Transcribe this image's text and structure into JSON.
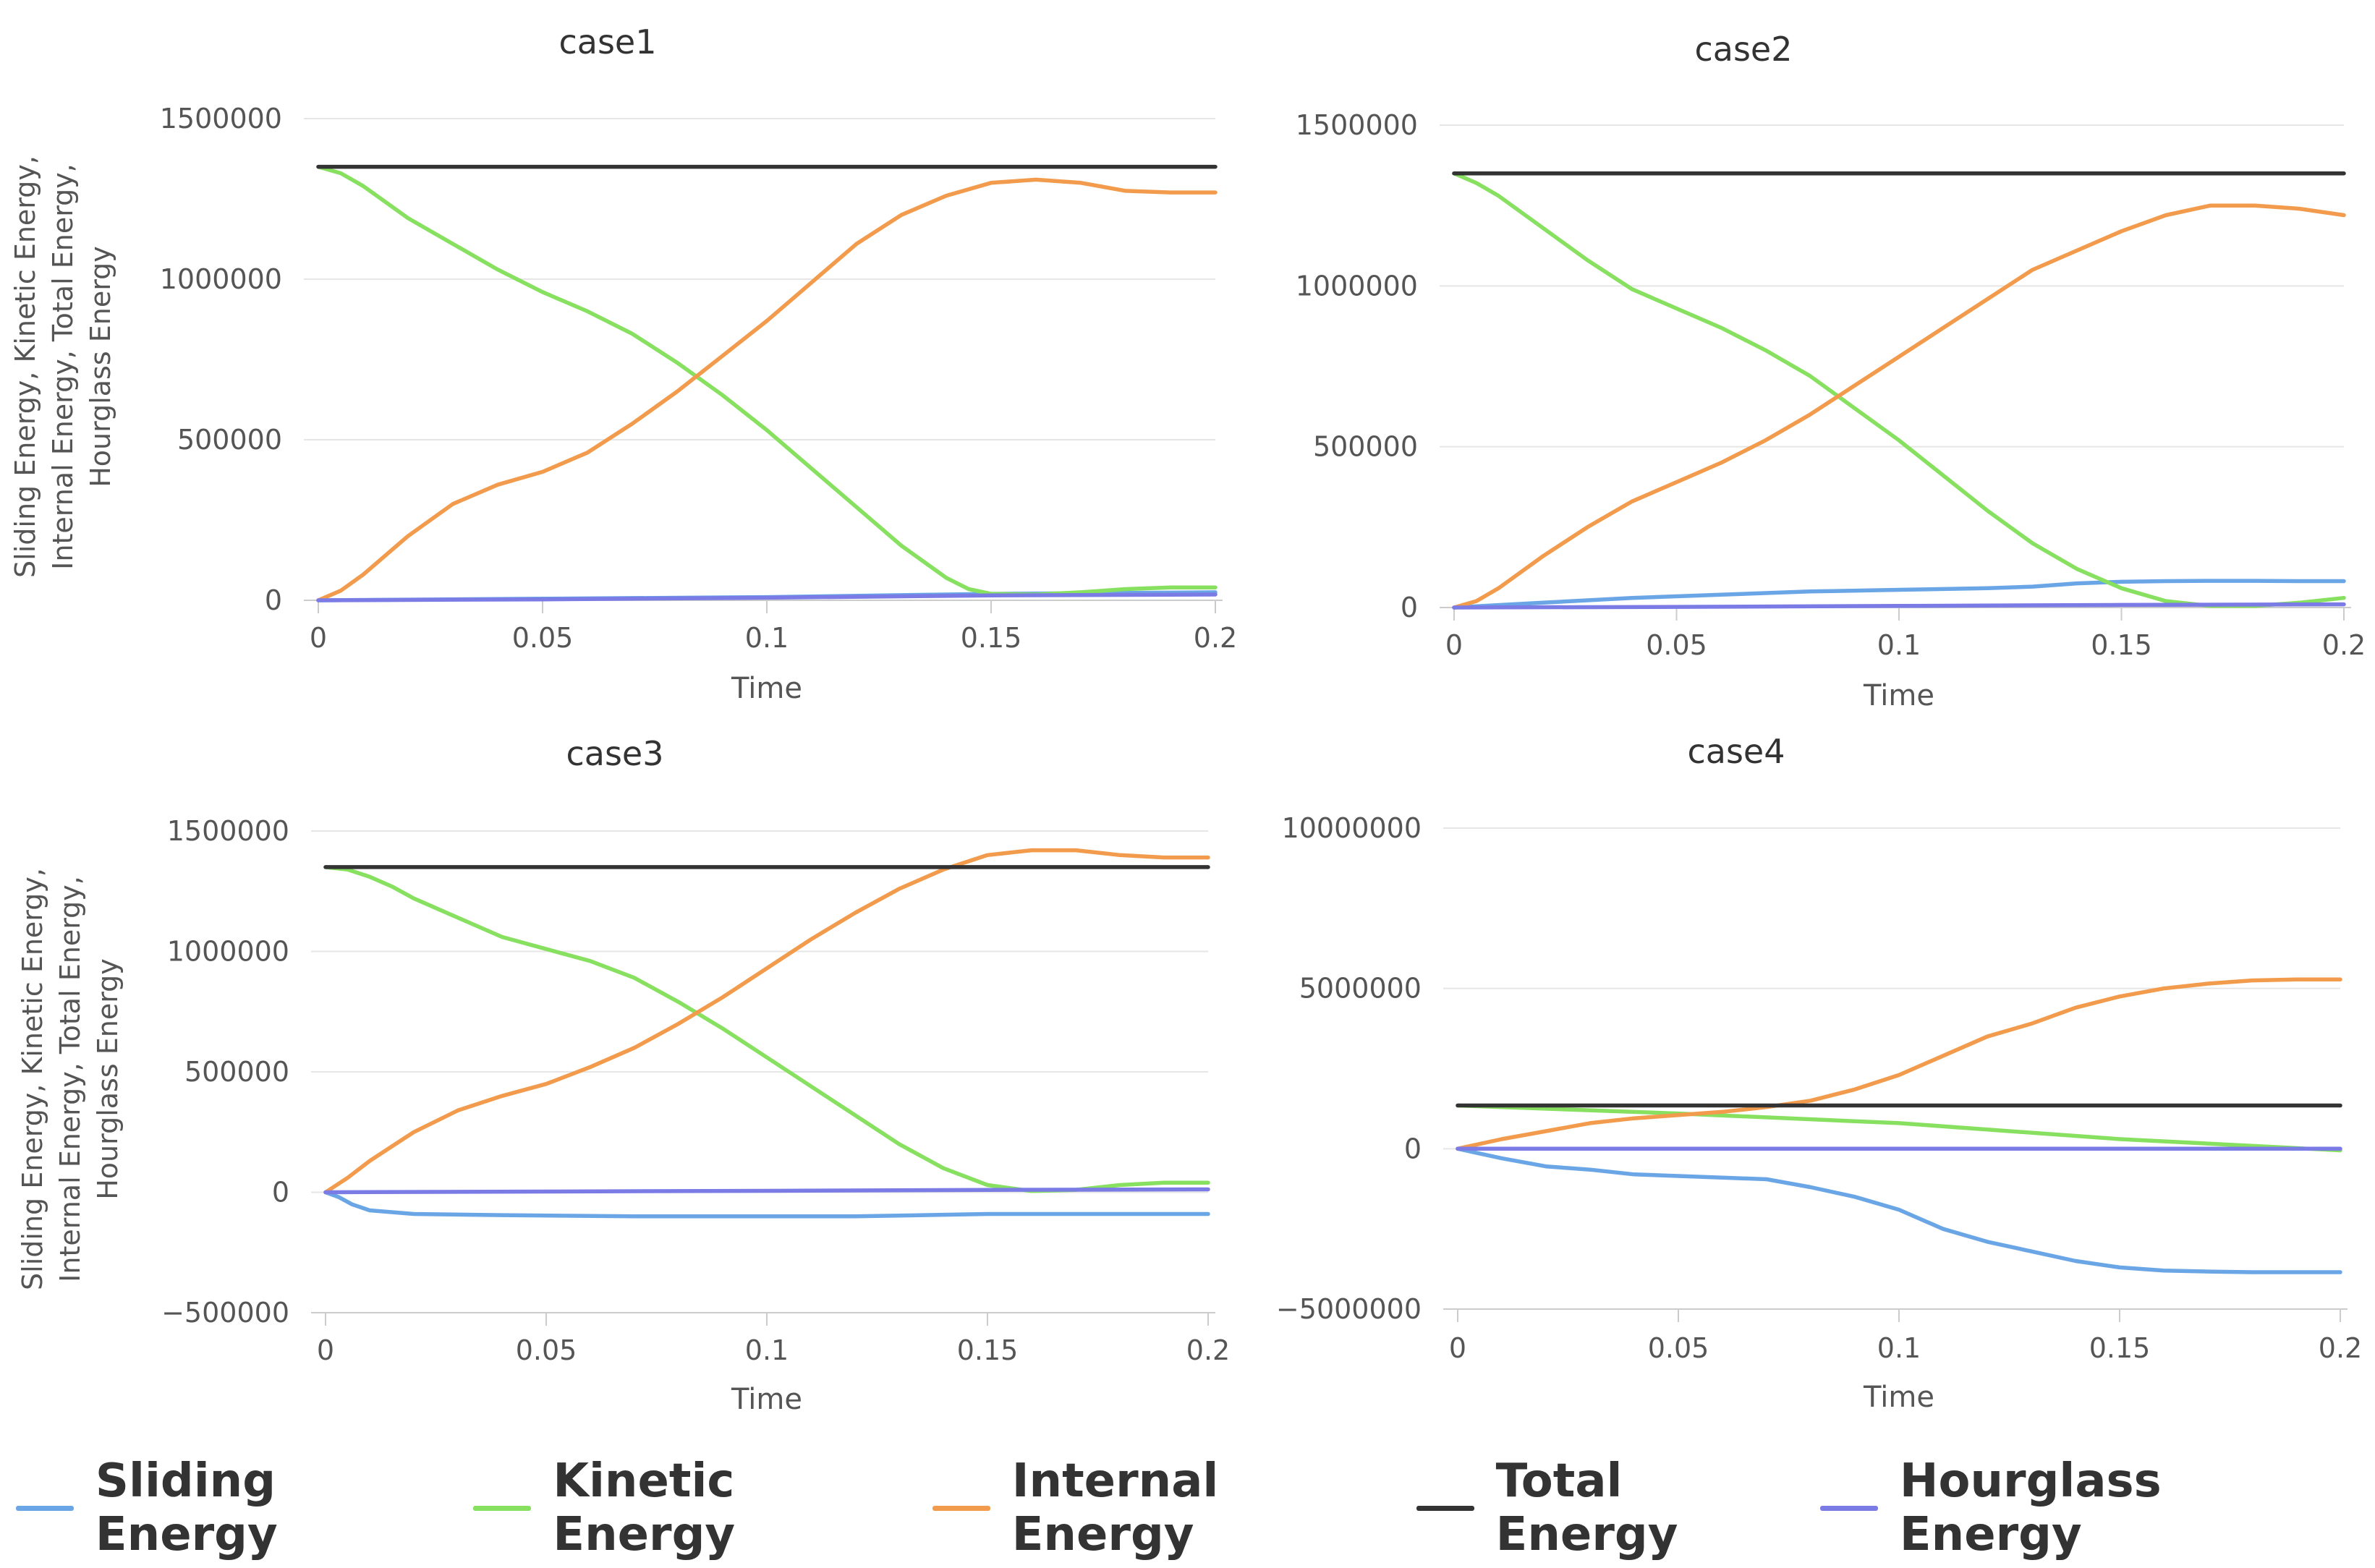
{
  "legend": {
    "items": [
      {
        "label": "Sliding Energy",
        "color": "#6aa6e6"
      },
      {
        "label": "Kinetic Energy",
        "color": "#87e060"
      },
      {
        "label": "Internal Energy",
        "color": "#f29b4c"
      },
      {
        "label": "Total Energy",
        "color": "#333333"
      },
      {
        "label": "Hourglass Energy",
        "color": "#7b7be6"
      }
    ]
  },
  "chart_data": [
    {
      "type": "line",
      "title": "case1",
      "xlabel": "Time",
      "ylabel_lines": [
        "Sliding Energy,",
        "Kinetic Energy,",
        "Internal Energy,",
        "Total Energy,",
        "Hourglass Energy"
      ],
      "xlim": [
        0,
        0.2
      ],
      "xticks": [
        0,
        0.05,
        0.1,
        0.15,
        0.2
      ],
      "ylim": [
        0,
        1500000
      ],
      "yticks": [
        0,
        500000,
        1000000,
        1500000
      ],
      "series": [
        {
          "name": "Sliding Energy",
          "color": "#6aa6e6",
          "x": [
            0,
            0.05,
            0.1,
            0.15,
            0.2
          ],
          "y": [
            0,
            5000,
            10000,
            20000,
            25000
          ]
        },
        {
          "name": "Kinetic Energy",
          "color": "#87e060",
          "x": [
            0,
            0.005,
            0.01,
            0.015,
            0.02,
            0.03,
            0.04,
            0.05,
            0.06,
            0.07,
            0.08,
            0.09,
            0.1,
            0.11,
            0.12,
            0.13,
            0.14,
            0.145,
            0.15,
            0.16,
            0.17,
            0.18,
            0.19,
            0.2
          ],
          "y": [
            1350000,
            1330000,
            1290000,
            1240000,
            1190000,
            1110000,
            1030000,
            960000,
            900000,
            830000,
            740000,
            640000,
            530000,
            410000,
            290000,
            170000,
            70000,
            35000,
            20000,
            18000,
            25000,
            35000,
            40000,
            40000
          ]
        },
        {
          "name": "Internal Energy",
          "color": "#f29b4c",
          "x": [
            0,
            0.005,
            0.01,
            0.015,
            0.02,
            0.03,
            0.04,
            0.05,
            0.06,
            0.07,
            0.08,
            0.09,
            0.1,
            0.11,
            0.12,
            0.13,
            0.14,
            0.15,
            0.16,
            0.17,
            0.18,
            0.19,
            0.2
          ],
          "y": [
            0,
            30000,
            80000,
            140000,
            200000,
            300000,
            360000,
            400000,
            460000,
            550000,
            650000,
            760000,
            870000,
            990000,
            1110000,
            1200000,
            1260000,
            1300000,
            1310000,
            1300000,
            1275000,
            1270000,
            1270000
          ]
        },
        {
          "name": "Total Energy",
          "color": "#333333",
          "x": [
            0,
            0.2
          ],
          "y": [
            1350000,
            1350000
          ]
        },
        {
          "name": "Hourglass Energy",
          "color": "#7b7be6",
          "x": [
            0,
            0.05,
            0.1,
            0.15,
            0.2
          ],
          "y": [
            0,
            3000,
            8000,
            15000,
            18000
          ]
        }
      ]
    },
    {
      "type": "line",
      "title": "case2",
      "xlabel": "Time",
      "ylabel_lines": [],
      "xlim": [
        0,
        0.2
      ],
      "xticks": [
        0,
        0.05,
        0.1,
        0.15,
        0.2
      ],
      "ylim": [
        0,
        1500000
      ],
      "yticks": [
        0,
        500000,
        1000000,
        1500000
      ],
      "series": [
        {
          "name": "Sliding Energy",
          "color": "#6aa6e6",
          "x": [
            0,
            0.02,
            0.04,
            0.06,
            0.08,
            0.1,
            0.12,
            0.13,
            0.14,
            0.15,
            0.16,
            0.17,
            0.18,
            0.19,
            0.2
          ],
          "y": [
            0,
            15000,
            30000,
            40000,
            50000,
            55000,
            60000,
            65000,
            75000,
            80000,
            82000,
            83000,
            83000,
            82000,
            82000
          ]
        },
        {
          "name": "Kinetic Energy",
          "color": "#87e060",
          "x": [
            0,
            0.005,
            0.01,
            0.02,
            0.03,
            0.04,
            0.05,
            0.06,
            0.07,
            0.08,
            0.09,
            0.1,
            0.11,
            0.12,
            0.13,
            0.14,
            0.15,
            0.16,
            0.17,
            0.18,
            0.19,
            0.2
          ],
          "y": [
            1350000,
            1320000,
            1280000,
            1180000,
            1080000,
            990000,
            930000,
            870000,
            800000,
            720000,
            620000,
            520000,
            410000,
            300000,
            200000,
            120000,
            60000,
            20000,
            5000,
            5000,
            15000,
            30000
          ]
        },
        {
          "name": "Internal Energy",
          "color": "#f29b4c",
          "x": [
            0,
            0.005,
            0.01,
            0.02,
            0.03,
            0.04,
            0.05,
            0.06,
            0.07,
            0.08,
            0.09,
            0.1,
            0.11,
            0.12,
            0.13,
            0.14,
            0.15,
            0.16,
            0.17,
            0.18,
            0.19,
            0.2
          ],
          "y": [
            0,
            20000,
            60000,
            160000,
            250000,
            330000,
            390000,
            450000,
            520000,
            600000,
            690000,
            780000,
            870000,
            960000,
            1050000,
            1110000,
            1170000,
            1220000,
            1250000,
            1250000,
            1240000,
            1220000
          ]
        },
        {
          "name": "Total Energy",
          "color": "#333333",
          "x": [
            0,
            0.2
          ],
          "y": [
            1350000,
            1350000
          ]
        },
        {
          "name": "Hourglass Energy",
          "color": "#7b7be6",
          "x": [
            0,
            0.05,
            0.1,
            0.15,
            0.2
          ],
          "y": [
            0,
            2000,
            5000,
            8000,
            10000
          ]
        }
      ]
    },
    {
      "type": "line",
      "title": "case3",
      "xlabel": "Time",
      "ylabel_lines": [
        "Sliding Energy,",
        "Kinetic Energy,",
        "Internal Energy,",
        "Total Energy,",
        "Hourglass Energy"
      ],
      "xlim": [
        0,
        0.2
      ],
      "xticks": [
        0,
        0.05,
        0.1,
        0.15,
        0.2
      ],
      "ylim": [
        -500000,
        1500000
      ],
      "yticks": [
        -500000,
        0,
        500000,
        1000000,
        1500000
      ],
      "series": [
        {
          "name": "Sliding Energy",
          "color": "#6aa6e6",
          "x": [
            0,
            0.003,
            0.006,
            0.01,
            0.02,
            0.04,
            0.07,
            0.1,
            0.12,
            0.15,
            0.2
          ],
          "y": [
            0,
            -20000,
            -50000,
            -75000,
            -90000,
            -95000,
            -100000,
            -100000,
            -100000,
            -90000,
            -90000
          ]
        },
        {
          "name": "Kinetic Energy",
          "color": "#87e060",
          "x": [
            0,
            0.005,
            0.01,
            0.015,
            0.02,
            0.03,
            0.04,
            0.05,
            0.06,
            0.07,
            0.08,
            0.09,
            0.1,
            0.11,
            0.12,
            0.13,
            0.14,
            0.15,
            0.16,
            0.17,
            0.18,
            0.19,
            0.2
          ],
          "y": [
            1350000,
            1340000,
            1310000,
            1270000,
            1220000,
            1140000,
            1060000,
            1010000,
            960000,
            890000,
            790000,
            680000,
            560000,
            440000,
            320000,
            200000,
            100000,
            30000,
            5000,
            10000,
            30000,
            40000,
            40000
          ]
        },
        {
          "name": "Internal Energy",
          "color": "#f29b4c",
          "x": [
            0,
            0.005,
            0.01,
            0.015,
            0.02,
            0.03,
            0.04,
            0.05,
            0.06,
            0.07,
            0.08,
            0.09,
            0.1,
            0.11,
            0.12,
            0.13,
            0.14,
            0.15,
            0.16,
            0.17,
            0.18,
            0.19,
            0.2
          ],
          "y": [
            0,
            60000,
            130000,
            190000,
            250000,
            340000,
            400000,
            450000,
            520000,
            600000,
            700000,
            810000,
            930000,
            1050000,
            1160000,
            1260000,
            1340000,
            1400000,
            1420000,
            1420000,
            1400000,
            1390000,
            1390000
          ]
        },
        {
          "name": "Total Energy",
          "color": "#333333",
          "x": [
            0,
            0.2
          ],
          "y": [
            1350000,
            1350000
          ]
        },
        {
          "name": "Hourglass Energy",
          "color": "#7b7be6",
          "x": [
            0,
            0.05,
            0.1,
            0.15,
            0.2
          ],
          "y": [
            0,
            3000,
            6000,
            10000,
            12000
          ]
        }
      ]
    },
    {
      "type": "line",
      "title": "case4",
      "xlabel": "Time",
      "ylabel_lines": [],
      "xlim": [
        0,
        0.2
      ],
      "xticks": [
        0,
        0.05,
        0.1,
        0.15,
        0.2
      ],
      "ylim": [
        -5000000,
        10000000
      ],
      "yticks": [
        -5000000,
        0,
        5000000,
        10000000
      ],
      "series": [
        {
          "name": "Sliding Energy",
          "color": "#6aa6e6",
          "x": [
            0,
            0.01,
            0.02,
            0.03,
            0.04,
            0.05,
            0.06,
            0.07,
            0.08,
            0.09,
            0.1,
            0.11,
            0.12,
            0.13,
            0.14,
            0.15,
            0.16,
            0.17,
            0.18,
            0.19,
            0.2
          ],
          "y": [
            0,
            -300000,
            -550000,
            -650000,
            -800000,
            -850000,
            -900000,
            -950000,
            -1200000,
            -1500000,
            -1900000,
            -2500000,
            -2900000,
            -3200000,
            -3500000,
            -3700000,
            -3800000,
            -3830000,
            -3850000,
            -3850000,
            -3850000
          ]
        },
        {
          "name": "Kinetic Energy",
          "color": "#87e060",
          "x": [
            0,
            0.05,
            0.1,
            0.15,
            0.2
          ],
          "y": [
            1350000,
            1100000,
            800000,
            300000,
            -50000
          ]
        },
        {
          "name": "Internal Energy",
          "color": "#f29b4c",
          "x": [
            0,
            0.01,
            0.02,
            0.03,
            0.04,
            0.05,
            0.06,
            0.07,
            0.08,
            0.09,
            0.1,
            0.11,
            0.12,
            0.13,
            0.14,
            0.15,
            0.16,
            0.17,
            0.18,
            0.19,
            0.2
          ],
          "y": [
            0,
            300000,
            550000,
            800000,
            950000,
            1050000,
            1150000,
            1300000,
            1500000,
            1850000,
            2300000,
            2900000,
            3500000,
            3900000,
            4400000,
            4750000,
            5000000,
            5150000,
            5250000,
            5280000,
            5280000
          ]
        },
        {
          "name": "Total Energy",
          "color": "#333333",
          "x": [
            0,
            0.2
          ],
          "y": [
            1350000,
            1350000
          ]
        },
        {
          "name": "Hourglass Energy",
          "color": "#7b7be6",
          "x": [
            0,
            0.05,
            0.1,
            0.15,
            0.2
          ],
          "y": [
            0,
            0,
            0,
            0,
            0
          ]
        }
      ]
    }
  ]
}
